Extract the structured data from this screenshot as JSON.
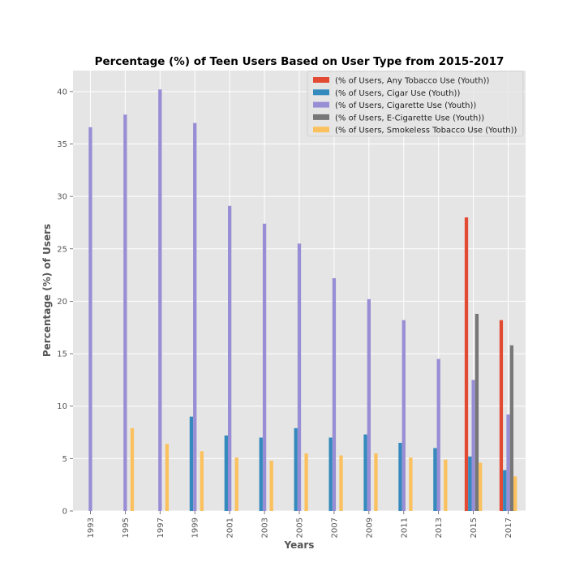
{
  "chart_data": {
    "type": "bar",
    "title": "Percentage (%) of Teen Users Based on User Type from 2015-2017",
    "xlabel": "Years",
    "ylabel": "Percentage (%) of Users",
    "ylim": [
      0,
      42
    ],
    "yticks": [
      0,
      5,
      10,
      15,
      20,
      25,
      30,
      35,
      40
    ],
    "grid": true,
    "legend_position": "top-right",
    "categories": [
      "1993",
      "1995",
      "1997",
      "1999",
      "2001",
      "2003",
      "2005",
      "2007",
      "2009",
      "2011",
      "2013",
      "2015",
      "2017"
    ],
    "series": [
      {
        "name": "(% of Users, Any Tobacco Use (Youth))",
        "color": "#e24a33",
        "values": [
          null,
          null,
          null,
          null,
          null,
          null,
          null,
          null,
          null,
          null,
          null,
          28.0,
          18.2
        ]
      },
      {
        "name": "(% of Users, Cigar Use (Youth))",
        "color": "#348abd",
        "values": [
          null,
          null,
          null,
          9.0,
          7.2,
          7.0,
          7.9,
          7.0,
          7.3,
          6.5,
          6.0,
          5.2,
          3.9
        ]
      },
      {
        "name": "(% of Users, Cigarette Use (Youth))",
        "color": "#988ed5",
        "values": [
          36.6,
          37.8,
          40.2,
          37.0,
          29.1,
          27.4,
          25.5,
          22.2,
          20.2,
          18.2,
          14.5,
          12.5,
          9.2
        ]
      },
      {
        "name": "(% of Users, E-Cigarette Use (Youth))",
        "color": "#777777",
        "values": [
          null,
          null,
          null,
          null,
          null,
          null,
          null,
          null,
          null,
          null,
          null,
          18.8,
          15.8
        ]
      },
      {
        "name": "(% of Users, Smokeless Tobacco Use (Youth))",
        "color": "#fbc15e",
        "values": [
          null,
          7.9,
          6.4,
          5.7,
          5.1,
          4.8,
          5.5,
          5.3,
          5.5,
          5.1,
          4.9,
          4.6,
          3.3
        ]
      }
    ]
  }
}
